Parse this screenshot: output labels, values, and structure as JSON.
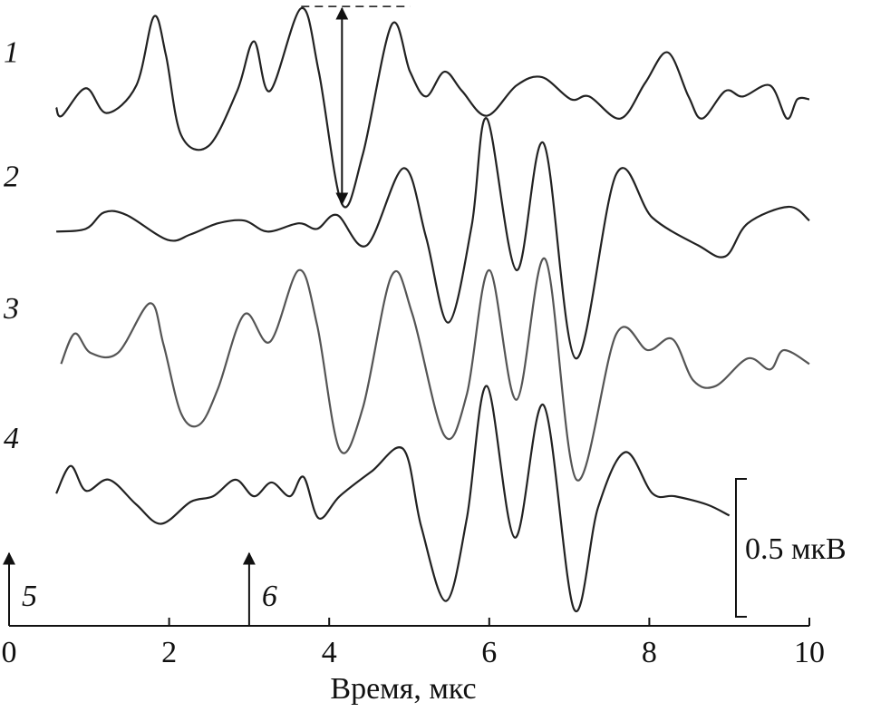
{
  "chart_data": {
    "type": "line",
    "xlabel": "Время, мкс",
    "xlim": [
      0,
      10
    ],
    "xticks": [
      0,
      2,
      4,
      6,
      8,
      10
    ],
    "ylim": [
      0,
      2.27
    ],
    "scale_bar": {
      "value": 0.5,
      "label": "0.5 мкВ"
    },
    "markers": [
      {
        "x": 0,
        "label": "5"
      },
      {
        "x": 3,
        "label": "6"
      }
    ],
    "series": [
      {
        "name": "1",
        "color": "#222222",
        "x": [
          0.59,
          0.66,
          0.96,
          1.22,
          1.59,
          1.81,
          1.96,
          2.15,
          2.49,
          2.85,
          3.06,
          3.26,
          3.65,
          3.87,
          4.16,
          4.42,
          4.78,
          5.01,
          5.21,
          5.44,
          5.66,
          5.97,
          6.34,
          6.66,
          7.02,
          7.25,
          7.64,
          7.95,
          8.23,
          8.49,
          8.66,
          8.95,
          9.17,
          9.51,
          9.72,
          9.85,
          10.0
        ],
        "values": [
          1.88,
          1.85,
          1.95,
          1.86,
          1.96,
          2.21,
          2.07,
          1.78,
          1.74,
          1.94,
          2.12,
          1.94,
          2.24,
          2.01,
          1.53,
          1.71,
          2.18,
          2.01,
          1.92,
          2.01,
          1.94,
          1.85,
          1.96,
          1.99,
          1.91,
          1.92,
          1.84,
          1.97,
          2.08,
          1.92,
          1.84,
          1.94,
          1.92,
          1.96,
          1.84,
          1.91,
          1.91
        ]
      },
      {
        "name": "2",
        "color": "#222222",
        "x": [
          0.59,
          0.96,
          1.19,
          1.47,
          1.98,
          2.27,
          2.61,
          2.94,
          3.23,
          3.62,
          3.85,
          4.1,
          4.47,
          4.93,
          5.21,
          5.49,
          5.78,
          5.97,
          6.34,
          6.68,
          7.08,
          7.59,
          8.04,
          8.61,
          8.95,
          9.23,
          9.74,
          10.0
        ],
        "values": [
          1.43,
          1.44,
          1.5,
          1.49,
          1.4,
          1.42,
          1.46,
          1.47,
          1.43,
          1.46,
          1.44,
          1.49,
          1.38,
          1.66,
          1.41,
          1.1,
          1.45,
          1.84,
          1.29,
          1.75,
          0.97,
          1.64,
          1.48,
          1.38,
          1.34,
          1.46,
          1.52,
          1.47
        ]
      },
      {
        "name": "3",
        "color": "#555555",
        "x": [
          0.65,
          0.82,
          1.02,
          1.36,
          1.76,
          1.93,
          2.15,
          2.38,
          2.61,
          2.94,
          3.26,
          3.62,
          3.85,
          4.13,
          4.42,
          4.78,
          5.04,
          5.44,
          5.72,
          6.0,
          6.34,
          6.7,
          7.09,
          7.59,
          7.98,
          8.29,
          8.55,
          8.83,
          9.23,
          9.51,
          9.68,
          10.0
        ],
        "values": [
          0.95,
          1.06,
          0.99,
          0.99,
          1.17,
          1.02,
          0.77,
          0.73,
          0.86,
          1.13,
          1.03,
          1.29,
          1.09,
          0.64,
          0.79,
          1.27,
          1.13,
          0.69,
          0.84,
          1.29,
          0.82,
          1.33,
          0.53,
          1.06,
          1.0,
          1.04,
          0.89,
          0.87,
          0.97,
          0.93,
          1.0,
          0.95
        ]
      },
      {
        "name": "4",
        "color": "#222222",
        "x": [
          0.59,
          0.77,
          0.96,
          1.25,
          1.59,
          1.9,
          2.27,
          2.55,
          2.83,
          3.06,
          3.28,
          3.51,
          3.68,
          3.87,
          4.13,
          4.53,
          4.93,
          5.15,
          5.46,
          5.72,
          5.97,
          6.32,
          6.68,
          7.06,
          7.36,
          7.7,
          8.04,
          8.32,
          8.72,
          9.0
        ],
        "values": [
          0.48,
          0.58,
          0.49,
          0.53,
          0.44,
          0.37,
          0.45,
          0.47,
          0.53,
          0.47,
          0.52,
          0.47,
          0.54,
          0.39,
          0.47,
          0.56,
          0.64,
          0.36,
          0.09,
          0.39,
          0.87,
          0.32,
          0.8,
          0.06,
          0.43,
          0.63,
          0.48,
          0.47,
          0.44,
          0.4
        ]
      }
    ]
  }
}
